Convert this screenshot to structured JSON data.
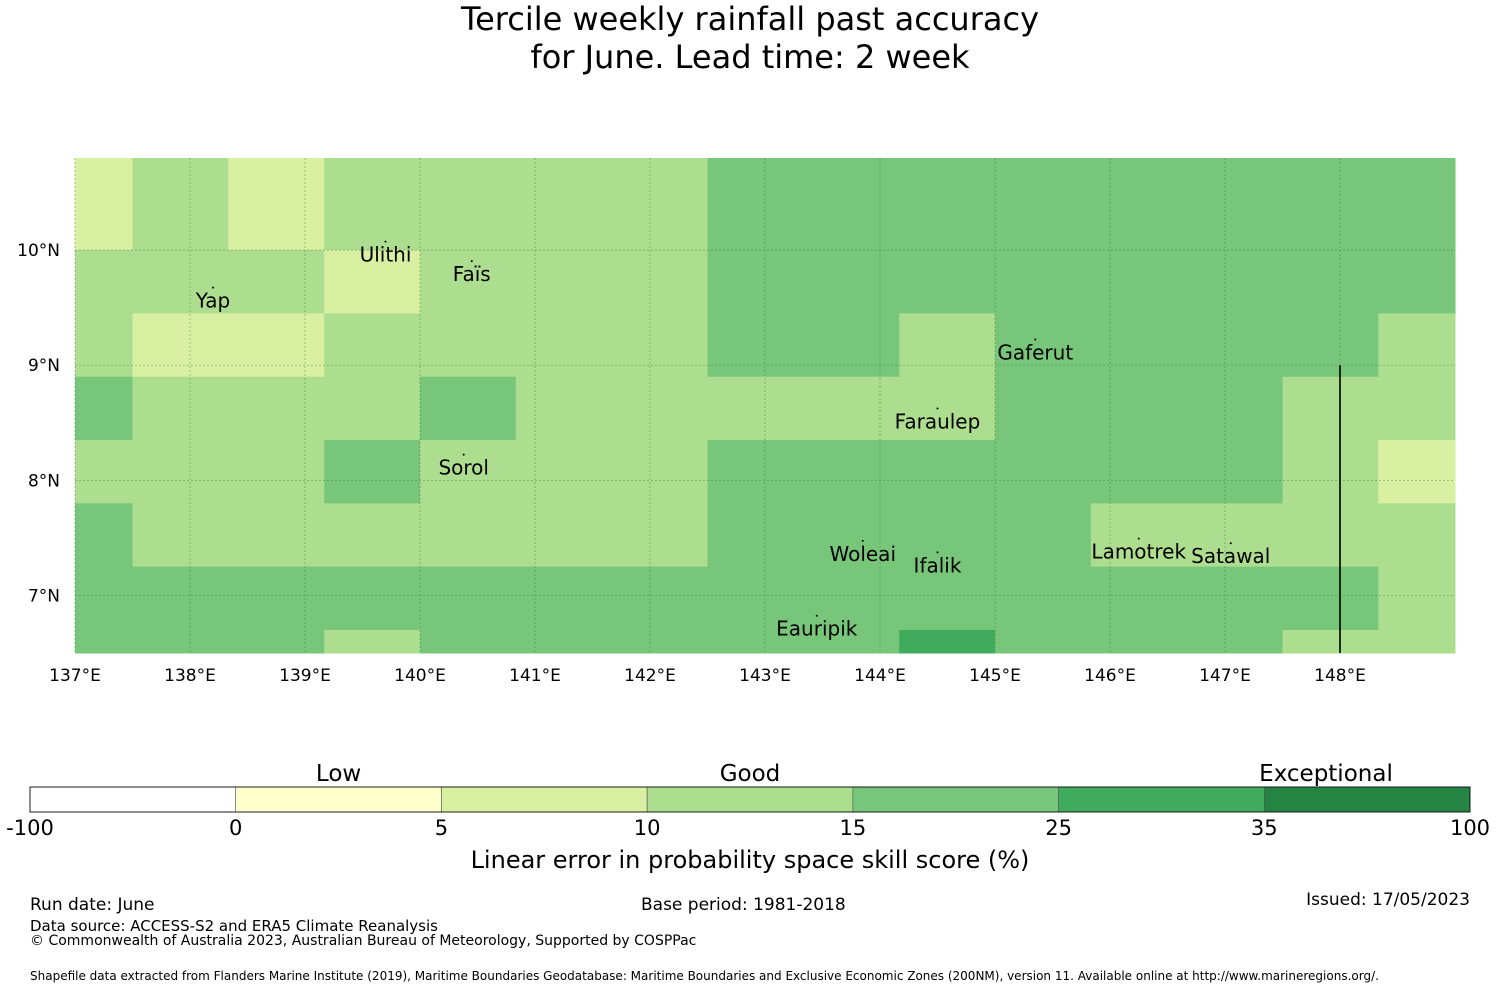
{
  "title": {
    "line1": "Tercile weekly rainfall past accuracy",
    "line2": "for June. Lead time: 2 week"
  },
  "map": {
    "lon_range": [
      137,
      149
    ],
    "lat_range": [
      6.5,
      10.8
    ],
    "lat_ticks": [
      {
        "value": 10,
        "label": "10°N"
      },
      {
        "value": 9,
        "label": "9°N"
      },
      {
        "value": 8,
        "label": "8°N"
      },
      {
        "value": 7,
        "label": "7°N"
      }
    ],
    "lon_ticks": [
      {
        "value": 137,
        "label": "137°E"
      },
      {
        "value": 138,
        "label": "138°E"
      },
      {
        "value": 139,
        "label": "139°E"
      },
      {
        "value": 140,
        "label": "140°E"
      },
      {
        "value": 141,
        "label": "141°E"
      },
      {
        "value": 142,
        "label": "142°E"
      },
      {
        "value": 143,
        "label": "143°E"
      },
      {
        "value": 144,
        "label": "144°E"
      },
      {
        "value": 145,
        "label": "145°E"
      },
      {
        "value": 146,
        "label": "146°E"
      },
      {
        "value": 147,
        "label": "147°E"
      },
      {
        "value": 148,
        "label": "148°E"
      }
    ],
    "grid": true,
    "boundary_line": {
      "lon": 148,
      "lat_from": 6.5,
      "lat_to": 9.0
    },
    "skill_grid": {
      "description_units": "category index per cell: 2=5-10, 3=10-15, 4=15-25, 5=25-35",
      "lon_edges": [
        137.0,
        137.5,
        138.333,
        139.167,
        140.0,
        140.833,
        141.667,
        142.5,
        143.333,
        144.167,
        145.0,
        145.833,
        146.667,
        147.5,
        148.333,
        149.0
      ],
      "lat_edges": [
        10.8,
        10.0,
        9.45,
        8.9,
        8.35,
        7.8,
        7.25,
        6.7,
        6.5
      ],
      "rows": [
        [
          2,
          3,
          2,
          3,
          3,
          3,
          3,
          4,
          4,
          4,
          4,
          4,
          4,
          4,
          4
        ],
        [
          3,
          3,
          3,
          2,
          3,
          3,
          3,
          4,
          4,
          4,
          4,
          4,
          4,
          4,
          4
        ],
        [
          3,
          2,
          2,
          3,
          3,
          3,
          3,
          4,
          4,
          3,
          4,
          4,
          4,
          4,
          3
        ],
        [
          4,
          3,
          3,
          3,
          4,
          3,
          3,
          3,
          3,
          3,
          4,
          4,
          4,
          3,
          3
        ],
        [
          3,
          3,
          3,
          4,
          3,
          3,
          3,
          4,
          4,
          4,
          4,
          4,
          4,
          3,
          2
        ],
        [
          4,
          3,
          3,
          3,
          3,
          3,
          3,
          4,
          4,
          4,
          4,
          3,
          3,
          3,
          3
        ],
        [
          4,
          4,
          4,
          4,
          4,
          4,
          4,
          4,
          4,
          4,
          4,
          4,
          4,
          4,
          3
        ],
        [
          4,
          4,
          4,
          3,
          4,
          4,
          4,
          4,
          4,
          5,
          4,
          4,
          4,
          3,
          3
        ]
      ]
    },
    "places": [
      {
        "name": "Yap",
        "lon": 138.2,
        "lat": 9.5
      },
      {
        "name": "Ulithi",
        "lon": 139.7,
        "lat": 9.9
      },
      {
        "name": "Faïs",
        "lon": 140.45,
        "lat": 9.73
      },
      {
        "name": "Gaferut",
        "lon": 145.35,
        "lat": 9.05
      },
      {
        "name": "Faraulep",
        "lon": 144.5,
        "lat": 8.45
      },
      {
        "name": "Sorol",
        "lon": 140.38,
        "lat": 8.05
      },
      {
        "name": "Woleai",
        "lon": 143.85,
        "lat": 7.3
      },
      {
        "name": "Ifalik",
        "lon": 144.5,
        "lat": 7.2
      },
      {
        "name": "Lamotrek",
        "lon": 146.25,
        "lat": 7.32
      },
      {
        "name": "Satawal",
        "lon": 147.05,
        "lat": 7.28
      },
      {
        "name": "Eauripik",
        "lon": 143.45,
        "lat": 6.65
      }
    ]
  },
  "colorbar": {
    "categories": [
      {
        "label": "Low"
      },
      {
        "label": "Good"
      },
      {
        "label": "Exceptional"
      }
    ],
    "bins": [
      {
        "from": -100,
        "to": 0,
        "color": "#ffffff"
      },
      {
        "from": 0,
        "to": 5,
        "color": "#ffffcc"
      },
      {
        "from": 5,
        "to": 10,
        "color": "#d9f0a3"
      },
      {
        "from": 10,
        "to": 15,
        "color": "#addd8e"
      },
      {
        "from": 15,
        "to": 25,
        "color": "#78c679"
      },
      {
        "from": 25,
        "to": 35,
        "color": "#41ab5d"
      },
      {
        "from": 35,
        "to": 100,
        "color": "#238443"
      }
    ],
    "tick_labels": [
      "-100",
      "0",
      "5",
      "10",
      "15",
      "25",
      "35",
      "100"
    ],
    "label": "Linear error in probability space skill score (%)"
  },
  "footer": {
    "run_date": "Run date: June",
    "base_period": "Base period: 1981-2018",
    "issued": "Issued: 17/05/2023",
    "data_source": "Data source: ACCESS-S2 and ERA5 Climate Reanalysis",
    "copyright": "© Commonwealth of Australia 2023, Australian Bureau of Meteorology, Supported by COSPPac",
    "shapefile": "Shapefile data extracted from Flanders Marine Institute (2019), Maritime Boundaries Geodatabase: Maritime Boundaries and Exclusive Economic Zones (200NM), version 11. Available online at http://www.marineregions.org/."
  }
}
